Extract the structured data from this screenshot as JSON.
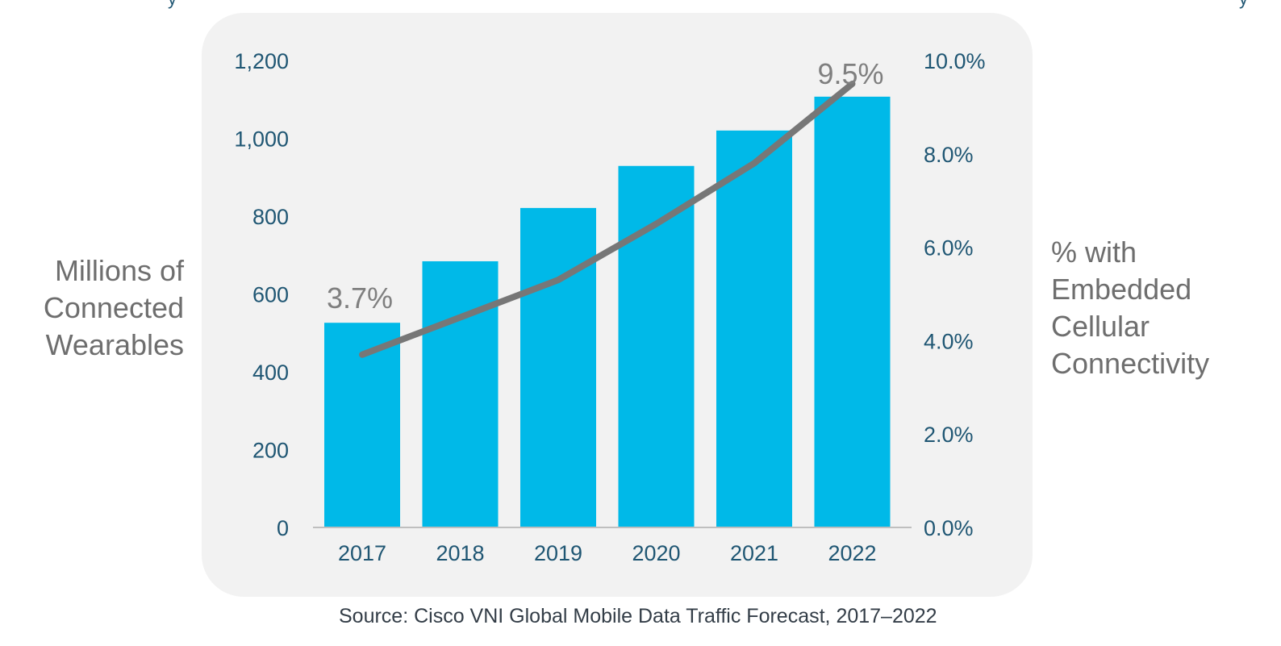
{
  "header_fragments": [
    "y",
    "y"
  ],
  "chart_data": {
    "type": "bar+line",
    "title": "",
    "categories": [
      "2017",
      "2018",
      "2019",
      "2020",
      "2021",
      "2022"
    ],
    "series": [
      {
        "name": "Millions of Connected Wearables",
        "type": "bar",
        "axis": "left",
        "color": "#00b9e8",
        "values": [
          526,
          684,
          821,
          929,
          1020,
          1107
        ]
      },
      {
        "name": "% with Embedded Cellular Connectivity",
        "type": "line",
        "axis": "right",
        "color": "#777777",
        "values": [
          3.7,
          4.5,
          5.3,
          6.5,
          7.8,
          9.5
        ]
      }
    ],
    "ylabel_left": [
      "Millions of",
      "Connected",
      "Wearables"
    ],
    "ylabel_right": [
      "% with",
      "Embedded",
      "Cellular",
      "Connectivity"
    ],
    "ylim_left": [
      0,
      1200
    ],
    "ylim_right": [
      0,
      10
    ],
    "yticks_left": [
      "0",
      "200",
      "400",
      "600",
      "800",
      "1,000",
      "1,200"
    ],
    "yticks_right": [
      "0.0%",
      "2.0%",
      "4.0%",
      "6.0%",
      "8.0%",
      "10.0%"
    ],
    "annotations": [
      {
        "category": "2017",
        "text": "3.7%"
      },
      {
        "category": "2022",
        "text": "9.5%"
      }
    ],
    "grid": false,
    "legend": "none",
    "axis_color": "#bfbfbf",
    "tick_color": "#1f5673",
    "panel_color": "#f2f2f2"
  },
  "source": "Source: Cisco VNI Global Mobile Data Traffic Forecast, 2017–2022"
}
